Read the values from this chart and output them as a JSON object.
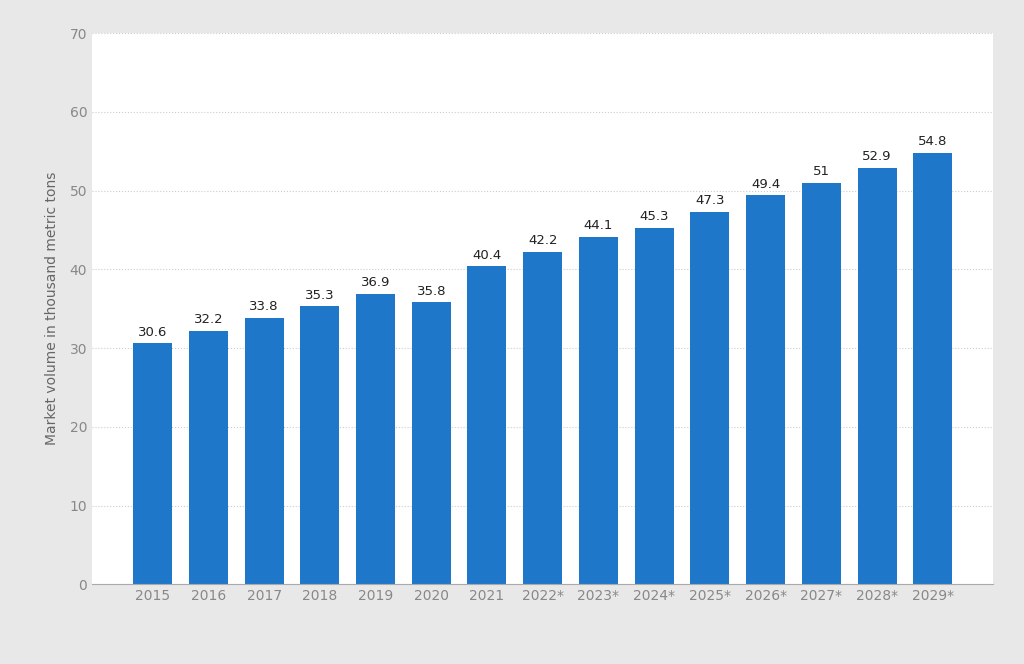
{
  "categories": [
    "2015",
    "2016",
    "2017",
    "2018",
    "2019",
    "2020",
    "2021",
    "2022*",
    "2023*",
    "2024*",
    "2025*",
    "2026*",
    "2027*",
    "2028*",
    "2029*"
  ],
  "values": [
    30.6,
    32.2,
    33.8,
    35.3,
    36.9,
    35.8,
    40.4,
    42.2,
    44.1,
    45.3,
    47.3,
    49.4,
    51,
    52.9,
    54.8
  ],
  "bar_color": "#1f77c9",
  "ylabel": "Market volume in thousand metric tons",
  "ylim": [
    0,
    70
  ],
  "yticks": [
    0,
    10,
    20,
    30,
    40,
    50,
    60,
    70
  ],
  "background_color": "#e8e8e8",
  "plot_bg_color": "#ffffff",
  "grid_color": "#cccccc",
  "tick_color": "#888888",
  "label_color": "#666666",
  "label_fontsize": 10,
  "tick_fontsize": 10,
  "bar_label_fontsize": 9.5,
  "bar_width": 0.7
}
